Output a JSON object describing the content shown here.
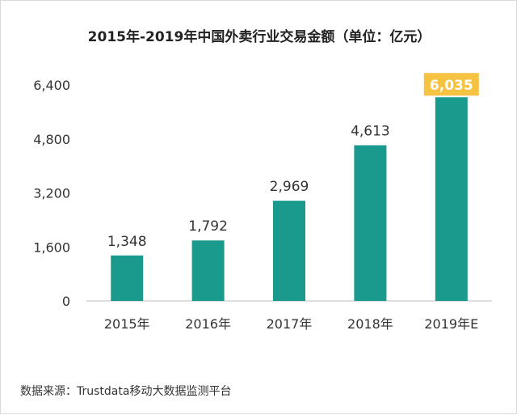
{
  "chart_data": {
    "type": "bar",
    "title": "2015年-2019年中国外卖行业交易金额（单位：亿元）",
    "categories": [
      "2015年",
      "2016年",
      "2017年",
      "2018年",
      "2019年E"
    ],
    "values": [
      1348,
      1792,
      2969,
      4613,
      6035
    ],
    "value_labels": [
      "1,348",
      "1,792",
      "2,969",
      "4,613",
      "6,035"
    ],
    "y_ticks": [
      0,
      1600,
      3200,
      4800,
      6400
    ],
    "y_tick_labels": [
      "0",
      "1,600",
      "3,200",
      "4,800",
      "6,400"
    ],
    "ylim": [
      0,
      6400
    ],
    "grid": false,
    "highlight_index": 4,
    "colors": {
      "bar": "#1a9a8d",
      "highlight_label_bg": "#f5c242",
      "highlight_label_text": "#ffffff",
      "axis": "#bfbfbf",
      "text": "#333333"
    }
  },
  "source": "数据来源：Trustdata移动大数据监测平台"
}
